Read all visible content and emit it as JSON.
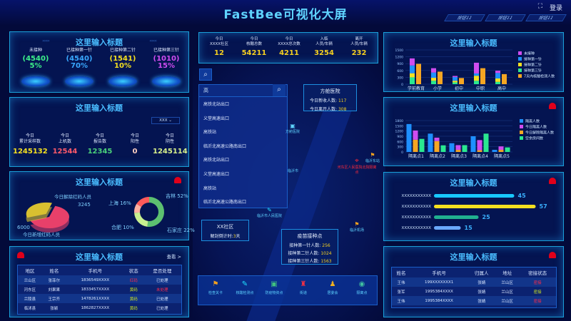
{
  "header": {
    "title": "FastBee可视化大屏",
    "buttons": [
      "按钮11",
      "按钮11",
      "按钮11"
    ],
    "login": "登录",
    "fullscreen_icon": "fullscreen-icon"
  },
  "vaccine": {
    "title": "这里输入标题",
    "items": [
      {
        "label": "未接种",
        "count": "(4540)",
        "pct": "5%",
        "color": "#3cf08a"
      },
      {
        "label": "已接种第一针",
        "count": "(4540)",
        "pct": "70%",
        "color": "#39a8ff"
      },
      {
        "label": "已接种第二针",
        "count": "(1541)",
        "pct": "10%",
        "color": "#f5e020"
      },
      {
        "label": "已接种第三针",
        "count": "(1010)",
        "pct": "15%",
        "color": "#d04cf0"
      }
    ]
  },
  "sampling": {
    "title": "这里输入标题",
    "select": "XXX",
    "items": [
      {
        "l1": "今日",
        "l2": "累计采样数",
        "value": "1245132",
        "color": "#f5e020"
      },
      {
        "l1": "今日",
        "l2": "上机数",
        "value": "12544",
        "color": "#ff5a6a"
      },
      {
        "l1": "今日",
        "l2": "报告数",
        "value": "12345",
        "color": "#4ad07a"
      },
      {
        "l1": "今日",
        "l2": "阳性",
        "value": "0",
        "color": "#ffd0c0"
      },
      {
        "l1": "今日",
        "l2": "阴性",
        "value": "1245114",
        "color": "#d8f08a"
      }
    ]
  },
  "redcode": {
    "title": "这里输入标题",
    "pie": [
      {
        "label": "今日新增红码人员",
        "value": 6000,
        "color": "#e8406a"
      },
      {
        "label": "今日解除红码人员",
        "value": 3245,
        "color": "#d8c030"
      }
    ],
    "donut": [
      {
        "label": "吉林",
        "pct": 52,
        "text": "吉林 52%",
        "color": "#5cc070"
      },
      {
        "label": "石家庄",
        "pct": 22,
        "text": "石家庄 22%",
        "color": "#c8f090"
      },
      {
        "label": "合肥",
        "pct": 10,
        "text": "合肥 10%",
        "color": "#ffb0a0"
      },
      {
        "label": "上海",
        "pct": 16,
        "text": "上海 16%",
        "color": "#ff5a5a"
      }
    ]
  },
  "redlist": {
    "title": "这里输入标题",
    "more": "查看 >",
    "columns": [
      "地区",
      "姓名",
      "手机号",
      "状态",
      "是否处理"
    ],
    "rows": [
      [
        "兰山区",
        "张菲尔",
        "1836549XXXX",
        "红码",
        "已处理"
      ],
      [
        "河东区",
        "刘果果",
        "1833457XXXX",
        "黄码",
        "未处理"
      ],
      [
        "兰陵县",
        "王宗齐",
        "1478261XXXX",
        "黄码",
        "已处理"
      ],
      [
        "临沭县",
        "张颖",
        "1862827XXXX",
        "黄码",
        "已处理"
      ]
    ],
    "status_colors": {
      "红码": "#ff2a4a",
      "黄码": "#c8e020",
      "未处理": "#ff2a4a"
    }
  },
  "stats": [
    {
      "l1": "今日",
      "l2": "XXXX社区",
      "v": "12"
    },
    {
      "l1": "今日",
      "l2": "核酸总数",
      "v": "54211"
    },
    {
      "l1": "今日",
      "l2": "XXXX总次数",
      "v": "4211"
    },
    {
      "l1": "入临",
      "l2": "人员/车辆",
      "v": "3254"
    },
    {
      "l1": "离开",
      "l2": "人员/车辆",
      "v": "232"
    }
  ],
  "search": {
    "value": "高",
    "items": [
      "高铁北站出口",
      "义堂高速出口",
      "高铁站",
      "临沂北高速公路南出口",
      "高铁北站出口",
      "义堂高速出口",
      "高铁站",
      "临沂北高速公路南出口"
    ]
  },
  "popups": {
    "hospital": {
      "title": "方舱医院",
      "r1": "今日新收人数:",
      "v1": "117",
      "r2": "今日离开人数:",
      "v2": "308"
    },
    "community": {
      "title": "XX社区",
      "r1": "解封倒计时:",
      "v1": "3",
      "unit": "天"
    },
    "vaccine_point": {
      "title": "疫苗接种点",
      "rows": [
        [
          "接种第一针人数:",
          "256"
        ],
        [
          "接种第二针人数:",
          "1024"
        ],
        [
          "接种第三针人数:",
          "1563"
        ]
      ]
    }
  },
  "map": {
    "isolation_marker": "河东区人民医院北院隔离点",
    "labels": [
      "方舱医院",
      "临沂东站",
      "临沂市",
      "临沂市人民医院",
      "临沂机场"
    ]
  },
  "toolbar": [
    {
      "label": "检查关卡",
      "icon": "flag-icon",
      "color": "#f0a020"
    },
    {
      "label": "核酸检测点",
      "icon": "test-tube-icon",
      "color": "#20e0ff"
    },
    {
      "label": "防疫物资点",
      "icon": "supplies-icon",
      "color": "#40c080"
    },
    {
      "label": "街道",
      "icon": "street-icon",
      "color": "#ff3040"
    },
    {
      "label": "居委会",
      "icon": "committee-icon",
      "color": "#f0b020"
    },
    {
      "label": "隔离点",
      "icon": "isolation-icon",
      "color": "#40c0a0"
    }
  ],
  "chart_data": [
    {
      "type": "bar",
      "title": "这里输入标题",
      "categories": [
        "学前教育",
        "小学",
        "初中",
        "中职",
        "高中"
      ],
      "ylim": [
        0,
        1500
      ],
      "yticks": [
        0,
        300,
        600,
        900,
        1200,
        1500
      ],
      "legend": "right",
      "series": [
        {
          "name": "未接种",
          "color": "#d04cf0",
          "stack": "a",
          "values": [
            310,
            190,
            50,
            470,
            100
          ]
        },
        {
          "name": "接种第一针",
          "color": "#1e90ff",
          "stack": "a",
          "values": [
            340,
            230,
            160,
            100,
            240
          ]
        },
        {
          "name": "接种第二针",
          "color": "#f5e020",
          "stack": "a",
          "values": [
            180,
            130,
            70,
            220,
            150
          ]
        },
        {
          "name": "接种第三针",
          "color": "#2ae890",
          "stack": "a",
          "values": [
            300,
            150,
            80,
            150,
            100
          ]
        },
        {
          "name": "7天内核酸检测人数",
          "color": "#f5a623",
          "stack": "b",
          "values": [
            890,
            550,
            270,
            700,
            440
          ]
        }
      ]
    },
    {
      "type": "bar",
      "title": "这里输入标题",
      "categories": [
        "隔离点1",
        "隔离点2",
        "隔离点3",
        "隔离点4",
        "隔离点5"
      ],
      "ylim": [
        0,
        1800
      ],
      "yticks": [
        0,
        300,
        600,
        900,
        1200,
        1500,
        1800
      ],
      "legend": "right",
      "series": [
        {
          "name": "隔离人数",
          "color": "#1e90ff",
          "stack": "a",
          "values": [
            1600,
            1050,
            500,
            900,
            120
          ]
        },
        {
          "name": "今日隔离人数",
          "color": "#d04cf0",
          "stack": "b",
          "values": [
            530,
            200,
            270,
            580,
            200
          ]
        },
        {
          "name": "今日解除隔离人数",
          "color": "#f5a623",
          "stack": "b",
          "values": [
            700,
            620,
            120,
            100,
            120
          ]
        },
        {
          "name": "空余房间数",
          "color": "#2ae890",
          "stack": "c",
          "values": [
            750,
            380,
            390,
            1050,
            260
          ]
        }
      ]
    },
    {
      "type": "bar",
      "orientation": "horizontal",
      "title": "这里输入标题",
      "categories": [
        "XXXXXXXXXXX",
        "XXXXXXXXXXX",
        "XXXXXXXXXXX",
        "XXXXXXXXXXX"
      ],
      "values": [
        45,
        57,
        25,
        15
      ],
      "colors": [
        "#18c8ff",
        "#f5e020",
        "#20b090",
        "#6aa8ff"
      ],
      "xlim": [
        0,
        60
      ]
    }
  ],
  "contacts": {
    "title": "这里输入标题",
    "columns": [
      "姓名",
      "手机号",
      "归属人",
      "地址",
      "密接状态"
    ],
    "rows": [
      [
        "王伟",
        "199XXXXXXX1",
        "张婧",
        "兰山区",
        "密接"
      ],
      [
        "张军",
        "1995384XXXX",
        "张婧",
        "兰山区",
        "密接"
      ],
      [
        "王伟",
        "1995384XXXX",
        "张婧",
        "兰山区",
        "密接"
      ]
    ],
    "status_colors": [
      "#ff2a4a",
      "#c8e020",
      "#ff2a4a"
    ]
  }
}
